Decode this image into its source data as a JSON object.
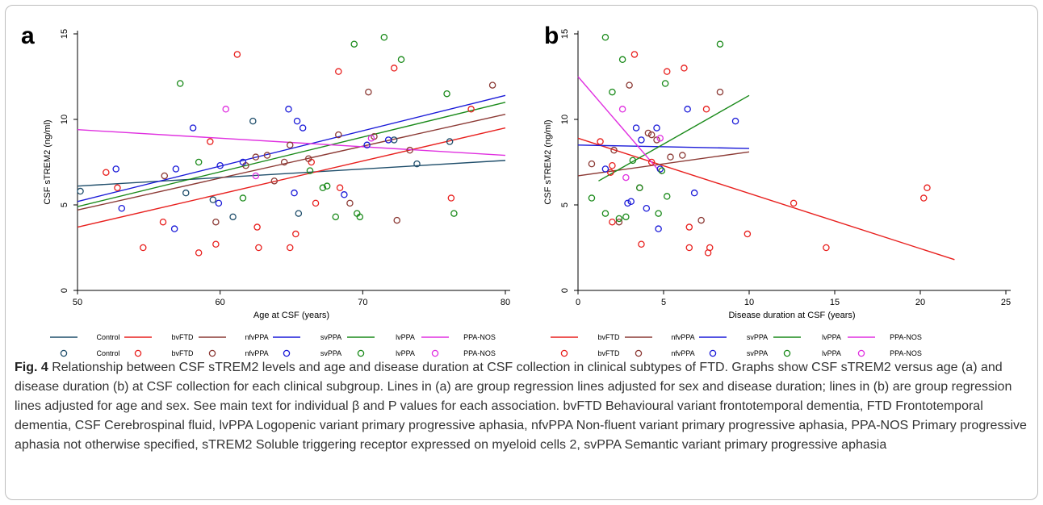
{
  "panels": {
    "a": "a",
    "b": "b"
  },
  "caption": {
    "fig_label": "Fig. 4",
    "text": " Relationship between CSF sTREM2 levels and age and disease duration at CSF collection in clinical subtypes of FTD. Graphs show CSF sTREM2 versus age (a) and disease duration (b) at CSF collection for each clinical subgroup. Lines in (a) are group regression lines adjusted for sex and disease duration; lines in (b) are group regression lines adjusted for age and sex. See main text for individual β and P values for each association. bvFTD Behavioural variant frontotemporal dementia, FTD Frontotemporal dementia, CSF Cerebrospinal fluid, lvPPA Logopenic variant primary progressive aphasia, nfvPPA Non-fluent variant primary progressive aphasia, PPA-NOS Primary progressive aphasia not otherwise specified, sTREM2 Soluble triggering receptor expressed on myeloid cells 2, svPPA Semantic variant primary progressive aphasia"
  },
  "colors": {
    "Control": "#1f4e6b",
    "bvFTD": "#e8201e",
    "nfvPPA": "#8c3a35",
    "svPPA": "#1a1ad8",
    "lvPPA": "#1a8a1a",
    "PPA-NOS": "#e030e0",
    "axis": "#000000"
  },
  "chart_data": [
    {
      "panel": "a",
      "type": "scatter",
      "xlabel": "Age at CSF (years)",
      "ylabel": "CSF sTREM2 (ng/ml)",
      "xlim": [
        50,
        80
      ],
      "ylim": [
        0,
        15
      ],
      "xticks": [
        50,
        60,
        70,
        80
      ],
      "yticks": [
        0,
        5,
        10,
        15
      ],
      "legend_position": "bottom",
      "legend_lines": [
        "Control",
        "bvFTD",
        "nfvPPA",
        "svPPA",
        "lvPPA",
        "PPA-NOS"
      ],
      "legend_markers": [
        "Control",
        "bvFTD",
        "nfvPPA",
        "svPPA",
        "lvPPA",
        "PPA-NOS"
      ],
      "lines": [
        {
          "name": "Control",
          "x": [
            50,
            80
          ],
          "y": [
            6.1,
            7.6
          ]
        },
        {
          "name": "bvFTD",
          "x": [
            50,
            80
          ],
          "y": [
            3.7,
            9.5
          ]
        },
        {
          "name": "nfvPPA",
          "x": [
            50,
            80
          ],
          "y": [
            4.7,
            10.3
          ]
        },
        {
          "name": "svPPA",
          "x": [
            50,
            80
          ],
          "y": [
            5.2,
            11.4
          ]
        },
        {
          "name": "lvPPA",
          "x": [
            50,
            80
          ],
          "y": [
            4.9,
            11.0
          ]
        },
        {
          "name": "PPA-NOS",
          "x": [
            50,
            80
          ],
          "y": [
            9.4,
            7.9
          ]
        }
      ],
      "series": [
        {
          "name": "Control",
          "points": [
            [
              50.2,
              5.8
            ],
            [
              57.6,
              5.7
            ],
            [
              59.5,
              5.3
            ],
            [
              60.9,
              4.3
            ],
            [
              62.3,
              9.9
            ],
            [
              65.5,
              4.5
            ],
            [
              72.2,
              8.8
            ],
            [
              73.8,
              7.4
            ],
            [
              76.1,
              8.7
            ]
          ]
        },
        {
          "name": "bvFTD",
          "points": [
            [
              52.0,
              6.9
            ],
            [
              52.8,
              6.0
            ],
            [
              54.6,
              2.5
            ],
            [
              56.0,
              4.0
            ],
            [
              58.5,
              2.2
            ],
            [
              59.3,
              8.7
            ],
            [
              59.7,
              2.7
            ],
            [
              61.2,
              13.8
            ],
            [
              62.6,
              3.7
            ],
            [
              62.7,
              2.5
            ],
            [
              64.9,
              2.5
            ],
            [
              65.3,
              3.3
            ],
            [
              66.4,
              7.5
            ],
            [
              66.7,
              5.1
            ],
            [
              68.3,
              12.8
            ],
            [
              68.4,
              6.0
            ],
            [
              72.2,
              13.0
            ],
            [
              76.2,
              5.4
            ],
            [
              77.6,
              10.6
            ]
          ]
        },
        {
          "name": "nfvPPA",
          "points": [
            [
              56.1,
              6.7
            ],
            [
              59.7,
              4.0
            ],
            [
              61.8,
              7.3
            ],
            [
              62.5,
              7.8
            ],
            [
              63.3,
              7.9
            ],
            [
              63.8,
              6.4
            ],
            [
              64.5,
              7.5
            ],
            [
              64.9,
              8.5
            ],
            [
              66.2,
              7.7
            ],
            [
              68.3,
              9.1
            ],
            [
              69.1,
              5.1
            ],
            [
              70.4,
              11.6
            ],
            [
              70.8,
              9.0
            ],
            [
              72.4,
              4.1
            ],
            [
              73.3,
              8.2
            ],
            [
              79.1,
              12.0
            ]
          ]
        },
        {
          "name": "svPPA",
          "points": [
            [
              52.7,
              7.1
            ],
            [
              53.1,
              4.8
            ],
            [
              56.8,
              3.6
            ],
            [
              56.9,
              7.1
            ],
            [
              58.1,
              9.5
            ],
            [
              59.9,
              5.1
            ],
            [
              60.0,
              7.3
            ],
            [
              61.6,
              7.5
            ],
            [
              64.8,
              10.6
            ],
            [
              65.2,
              5.7
            ],
            [
              65.4,
              9.9
            ],
            [
              65.8,
              9.5
            ],
            [
              68.7,
              5.6
            ],
            [
              70.3,
              8.5
            ],
            [
              71.8,
              8.8
            ]
          ]
        },
        {
          "name": "lvPPA",
          "points": [
            [
              57.2,
              12.1
            ],
            [
              58.5,
              7.5
            ],
            [
              61.6,
              5.4
            ],
            [
              66.3,
              7.0
            ],
            [
              67.2,
              6.0
            ],
            [
              67.5,
              6.1
            ],
            [
              68.1,
              4.3
            ],
            [
              69.4,
              14.4
            ],
            [
              69.6,
              4.5
            ],
            [
              69.8,
              4.3
            ],
            [
              71.5,
              14.8
            ],
            [
              72.7,
              13.5
            ],
            [
              75.9,
              11.5
            ],
            [
              76.4,
              4.5
            ]
          ]
        },
        {
          "name": "PPA-NOS",
          "points": [
            [
              60.4,
              10.6
            ],
            [
              62.5,
              6.7
            ],
            [
              70.6,
              8.9
            ]
          ]
        }
      ]
    },
    {
      "panel": "b",
      "type": "scatter",
      "xlabel": "Disease duration at CSF (years)",
      "ylabel": "CSF sTREM2 (ng/ml)",
      "xlim": [
        0,
        25
      ],
      "ylim": [
        0,
        15
      ],
      "xticks": [
        0,
        5,
        10,
        15,
        20,
        25
      ],
      "yticks": [
        0,
        5,
        10,
        15
      ],
      "legend_position": "bottom",
      "legend_lines": [
        "bvFTD",
        "nfvPPA",
        "svPPA",
        "lvPPA",
        "PPA-NOS"
      ],
      "legend_markers": [
        "bvFTD",
        "nfvPPA",
        "svPPA",
        "lvPPA",
        "PPA-NOS"
      ],
      "lines": [
        {
          "name": "bvFTD",
          "x": [
            0,
            22
          ],
          "y": [
            8.9,
            1.8
          ]
        },
        {
          "name": "nfvPPA",
          "x": [
            0,
            10
          ],
          "y": [
            6.7,
            8.1
          ]
        },
        {
          "name": "svPPA",
          "x": [
            0,
            10
          ],
          "y": [
            8.5,
            8.3
          ]
        },
        {
          "name": "lvPPA",
          "x": [
            1.2,
            10
          ],
          "y": [
            6.4,
            11.4
          ]
        },
        {
          "name": "PPA-NOS",
          "x": [
            0,
            4.9
          ],
          "y": [
            12.5,
            6.8
          ]
        }
      ],
      "series": [
        {
          "name": "bvFTD",
          "points": [
            [
              1.3,
              8.7
            ],
            [
              1.9,
              6.9
            ],
            [
              2.0,
              4.0
            ],
            [
              2.0,
              7.3
            ],
            [
              3.3,
              13.8
            ],
            [
              3.7,
              2.7
            ],
            [
              4.3,
              7.5
            ],
            [
              5.2,
              12.8
            ],
            [
              6.2,
              13.0
            ],
            [
              6.5,
              3.7
            ],
            [
              6.5,
              2.5
            ],
            [
              7.5,
              10.6
            ],
            [
              7.6,
              2.2
            ],
            [
              7.7,
              2.5
            ],
            [
              9.9,
              3.3
            ],
            [
              12.6,
              5.1
            ],
            [
              14.5,
              2.5
            ],
            [
              20.2,
              5.4
            ],
            [
              20.4,
              6.0
            ]
          ]
        },
        {
          "name": "nfvPPA",
          "points": [
            [
              0.8,
              7.4
            ],
            [
              2.4,
              4.0
            ],
            [
              2.1,
              8.2
            ],
            [
              3.0,
              12.0
            ],
            [
              3.6,
              6.0
            ],
            [
              4.1,
              9.2
            ],
            [
              4.3,
              9.1
            ],
            [
              4.6,
              8.8
            ],
            [
              5.4,
              7.8
            ],
            [
              6.1,
              7.9
            ],
            [
              7.2,
              4.1
            ],
            [
              8.3,
              11.6
            ]
          ]
        },
        {
          "name": "svPPA",
          "points": [
            [
              1.6,
              7.1
            ],
            [
              2.9,
              5.1
            ],
            [
              3.1,
              5.2
            ],
            [
              3.4,
              9.5
            ],
            [
              3.7,
              8.8
            ],
            [
              4.0,
              4.8
            ],
            [
              4.6,
              9.5
            ],
            [
              4.7,
              3.6
            ],
            [
              4.8,
              7.1
            ],
            [
              6.4,
              10.6
            ],
            [
              6.8,
              5.7
            ],
            [
              9.2,
              9.9
            ]
          ]
        },
        {
          "name": "lvPPA",
          "points": [
            [
              0.8,
              5.4
            ],
            [
              1.6,
              4.5
            ],
            [
              2.0,
              11.6
            ],
            [
              2.4,
              4.2
            ],
            [
              2.6,
              13.5
            ],
            [
              2.8,
              4.3
            ],
            [
              3.2,
              7.6
            ],
            [
              3.6,
              6.0
            ],
            [
              4.7,
              4.5
            ],
            [
              4.9,
              7.0
            ],
            [
              5.1,
              12.1
            ],
            [
              5.2,
              5.5
            ],
            [
              8.3,
              14.4
            ],
            [
              1.6,
              14.8
            ]
          ]
        },
        {
          "name": "PPA-NOS",
          "points": [
            [
              2.6,
              10.6
            ],
            [
              2.8,
              6.6
            ],
            [
              4.8,
              8.9
            ]
          ]
        }
      ]
    }
  ]
}
